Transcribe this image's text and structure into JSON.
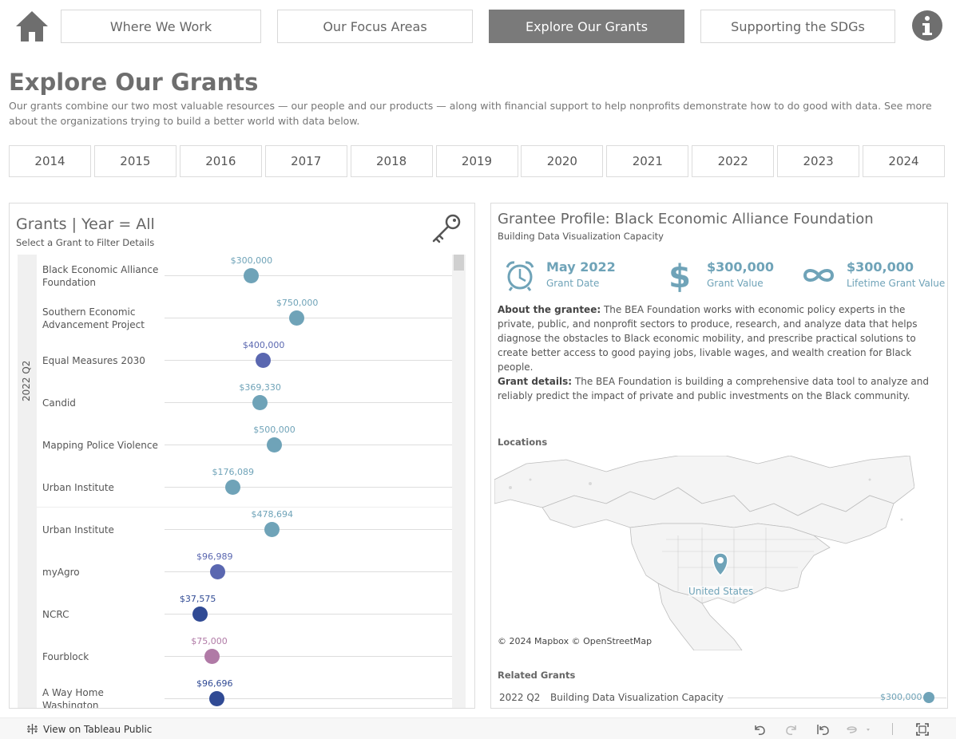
{
  "nav": {
    "items": [
      {
        "label": "Where We Work"
      },
      {
        "label": "Our Focus Areas"
      },
      {
        "label": "Explore Our Grants",
        "active": true
      },
      {
        "label": "Supporting the SDGs"
      }
    ],
    "home_icon": "home-icon",
    "info_icon": "info-icon"
  },
  "page": {
    "title": "Explore Our Grants",
    "description": "Our grants combine our two most valuable resources — our people and our products — along with financial support to help nonprofits demonstrate how to do good with data. See more about the organizations trying to build a better world with data below."
  },
  "years": [
    "2014",
    "2015",
    "2016",
    "2017",
    "2018",
    "2019",
    "2020",
    "2021",
    "2022",
    "2023",
    "2024"
  ],
  "grants_panel": {
    "title": "Grants | Year = All",
    "subtitle": "Select a Grant to Filter Details",
    "quarter": "2022 Q2",
    "rows": [
      {
        "name": "Black Economic Alliance Foundation",
        "value": 300000,
        "label": "$300,000",
        "color": "#6fa3b8"
      },
      {
        "name": "Southern Economic Advancement Project",
        "value": 750000,
        "label": "$750,000",
        "color": "#6fa3b8"
      },
      {
        "name": "Equal Measures 2030",
        "value": 400000,
        "label": "$400,000",
        "color": "#5a67b0"
      },
      {
        "name": "Candid",
        "value": 369330,
        "label": "$369,330",
        "color": "#6fa3b8"
      },
      {
        "name": "Mapping Police Violence",
        "value": 500000,
        "label": "$500,000",
        "color": "#6fa3b8"
      },
      {
        "name": "Urban Institute",
        "value": 176089,
        "label": "$176,089",
        "color": "#6fa3b8"
      },
      {
        "name": "Urban Institute",
        "value": 478694,
        "label": "$478,694",
        "color": "#6fa3b8"
      },
      {
        "name": "myAgro",
        "value": 96989,
        "label": "$96,989",
        "color": "#5a67b0"
      },
      {
        "name": "NCRC",
        "value": 37575,
        "label": "$37,575",
        "color": "#304a94"
      },
      {
        "name": "Fourblock",
        "value": 75000,
        "label": "$75,000",
        "color": "#b07aa6"
      },
      {
        "name": "A Way Home Washington",
        "value": 96696,
        "label": "$96,696",
        "color": "#304a94"
      }
    ]
  },
  "profile": {
    "title": "Grantee Profile: Black Economic Alliance Foundation",
    "subtitle": "Building Data Visualization Capacity",
    "kpis": [
      {
        "icon": "alarm-clock-icon",
        "value": "May 2022",
        "label": "Grant Date"
      },
      {
        "icon": "dollar-icon",
        "value": "$300,000",
        "label": "Grant Value"
      },
      {
        "icon": "infinity-icon",
        "value": "$300,000",
        "label": "Lifetime Grant Value"
      }
    ],
    "about_label": "About the grantee:",
    "about_text": " The BEA Foundation works with economic policy experts in the private, public, and nonprofit sectors to produce, research, and analyze data that helps diagnose the obstacles to Black economic mobility, and prescribe practical solutions to create better access to good paying jobs, livable wages, and wealth creation for Black people.",
    "details_label": "Grant details:",
    "details_text": " The BEA Foundation is building a comprehensive data tool to analyze and reliably predict the impact of private and public investments on the Black community.",
    "locations_label": "Locations",
    "map_location": "United States",
    "map_credit": "© 2024 Mapbox  © OpenStreetMap",
    "related_label": "Related Grants",
    "related": [
      {
        "quarter": "2022 Q2",
        "name": "Building Data Visualization Capacity",
        "value": "$300,000"
      }
    ]
  },
  "footer": {
    "link": "View on Tableau Public",
    "toolbar_icons": [
      "undo-icon",
      "redo-icon",
      "revert-icon",
      "refresh-icon",
      "fullscreen-icon"
    ]
  },
  "colors": {
    "accent": "#6fa3b8",
    "nav_active": "#7a7a7a"
  }
}
